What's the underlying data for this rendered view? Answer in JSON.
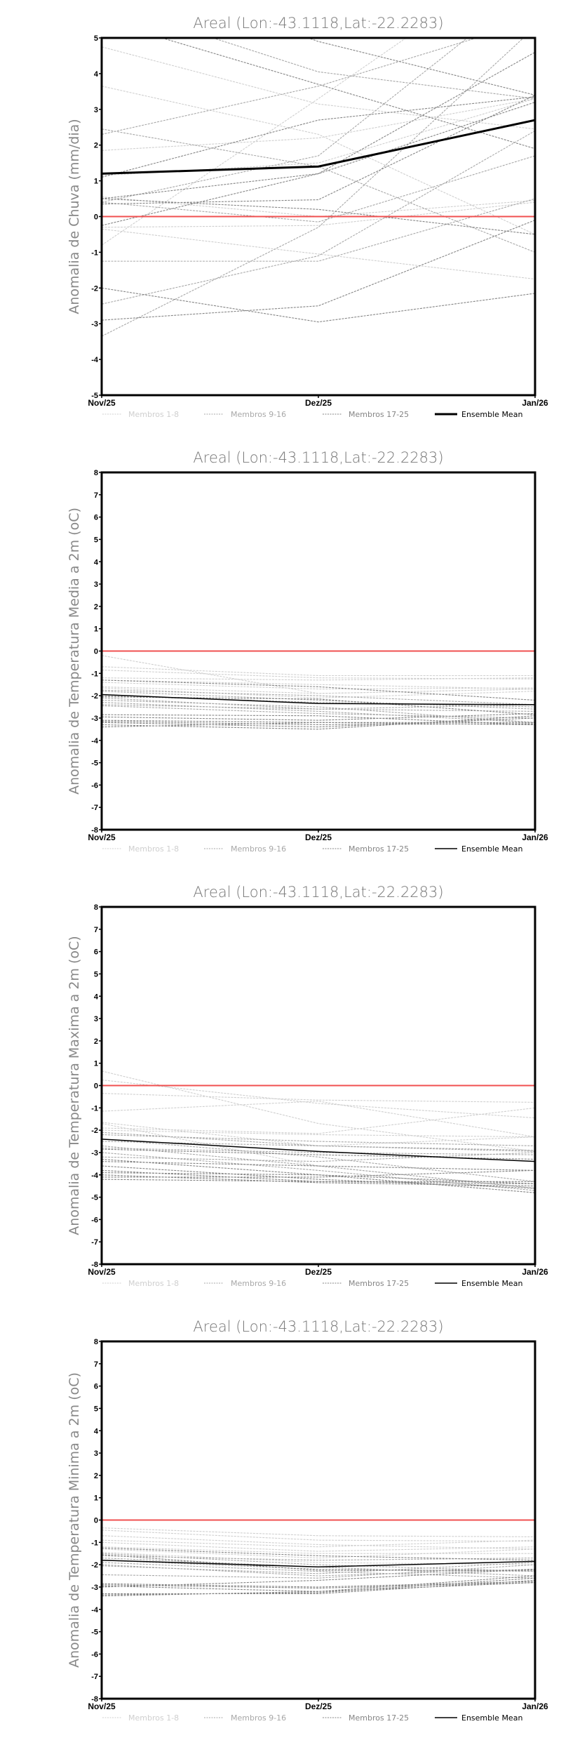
{
  "colors": {
    "g1": "#cfcfcf",
    "g2": "#a8a8a8",
    "g3": "#858585",
    "mean": "#000000",
    "zero": "#f05050"
  },
  "legend": [
    "Membros 1-8",
    "Membros 9-16",
    "Membros 17-25",
    "Ensemble Mean"
  ],
  "chart_data": [
    {
      "type": "line",
      "title": "Areal (Lon:-43.1118,Lat:-22.2283)",
      "ylabel": "Anomalia de Chuva (mm/dia)",
      "categories": [
        "Nov/25",
        "Dez/25",
        "Jan/26"
      ],
      "ylim": [
        -5,
        5
      ],
      "yticks": [
        5,
        4,
        3,
        2,
        1,
        0,
        -1,
        -2,
        -3,
        -4,
        -5
      ],
      "mean": [
        1.2,
        1.4,
        2.7
      ],
      "members": [
        [
          4.75,
          3.15,
          2.45
        ],
        [
          3.65,
          2.3,
          -0.5
        ],
        [
          1.85,
          2.2,
          3.3
        ],
        [
          -0.8,
          3.3,
          7.5
        ],
        [
          0.55,
          0.0,
          0.45
        ],
        [
          1.15,
          1.5,
          3.3
        ],
        [
          -0.3,
          -0.25,
          0.4
        ],
        [
          -0.35,
          -1.05,
          -1.75
        ],
        [
          2.3,
          3.65,
          5.5
        ],
        [
          2.45,
          1.4,
          -1.0
        ],
        [
          6.0,
          4.05,
          3.3
        ],
        [
          0.4,
          1.7,
          6.5
        ],
        [
          -1.25,
          -1.25,
          0.5
        ],
        [
          -2.45,
          -1.1,
          2.4
        ],
        [
          -3.35,
          -0.3,
          5.3
        ],
        [
          0.4,
          -0.15,
          1.7
        ],
        [
          7.0,
          4.9,
          3.4
        ],
        [
          5.5,
          3.7,
          1.9
        ],
        [
          1.1,
          2.7,
          3.35
        ],
        [
          0.5,
          1.2,
          4.6
        ],
        [
          -0.25,
          1.2,
          3.2
        ],
        [
          0.35,
          0.47,
          3.4
        ],
        [
          0.5,
          0.2,
          -0.5
        ],
        [
          -2.0,
          -2.95,
          -2.15
        ],
        [
          -2.9,
          -2.5,
          -0.1
        ]
      ]
    },
    {
      "type": "line",
      "title": "Areal (Lon:-43.1118,Lat:-22.2283)",
      "ylabel": "Anomalia de Temperatura Media a 2m (oC)",
      "categories": [
        "Nov/25",
        "Dez/25",
        "Jan/26"
      ],
      "ylim": [
        -8,
        8
      ],
      "yticks": [
        8,
        7,
        6,
        5,
        4,
        3,
        2,
        1,
        0,
        -1,
        -2,
        -3,
        -4,
        -5,
        -6,
        -7,
        -8
      ],
      "mean": [
        -1.95,
        -2.35,
        -2.4
      ],
      "members": [
        [
          -0.2,
          -1.9,
          -1.7
        ],
        [
          -0.7,
          -1.1,
          -1.1
        ],
        [
          -0.85,
          -1.2,
          -1.25
        ],
        [
          -1.2,
          -1.3,
          -1.2
        ],
        [
          -1.3,
          -1.5,
          -1.7
        ],
        [
          -1.4,
          -1.7,
          -1.65
        ],
        [
          -1.6,
          -1.9,
          -1.7
        ],
        [
          -1.65,
          -2.1,
          -1.8
        ],
        [
          -1.75,
          -2.0,
          -2.4
        ],
        [
          -1.8,
          -2.2,
          -2.6
        ],
        [
          -2.0,
          -2.3,
          -2.5
        ],
        [
          -2.1,
          -2.6,
          -2.7
        ],
        [
          -2.2,
          -2.5,
          -3.2
        ],
        [
          -2.3,
          -2.7,
          -3.2
        ],
        [
          -2.4,
          -2.6,
          -2.4
        ],
        [
          -2.45,
          -2.8,
          -3.0
        ],
        [
          -2.85,
          -2.9,
          -3.3
        ],
        [
          -2.95,
          -3.1,
          -2.8
        ],
        [
          -3.1,
          -3.2,
          -3.2
        ],
        [
          -3.15,
          -3.3,
          -3.25
        ],
        [
          -3.2,
          -3.4,
          -3.0
        ],
        [
          -3.3,
          -3.5,
          -2.9
        ],
        [
          -3.4,
          -3.2,
          -3.3
        ],
        [
          -1.3,
          -1.6,
          -2.2
        ],
        [
          -2.05,
          -2.15,
          -2.85
        ]
      ]
    },
    {
      "type": "line",
      "title": "Areal (Lon:-43.1118,Lat:-22.2283)",
      "ylabel": "Anomalia de Temperatura Maxima a 2m (oC)",
      "categories": [
        "Nov/25",
        "Dez/25",
        "Jan/26"
      ],
      "ylim": [
        -8,
        8
      ],
      "yticks": [
        8,
        7,
        6,
        5,
        4,
        3,
        2,
        1,
        0,
        -1,
        -2,
        -3,
        -4,
        -5,
        -6,
        -7,
        -8
      ],
      "mean": [
        -2.4,
        -2.95,
        -3.4
      ],
      "members": [
        [
          0.65,
          -1.7,
          -2.95
        ],
        [
          0.25,
          -0.8,
          -1.45
        ],
        [
          -0.35,
          -0.65,
          -0.75
        ],
        [
          -1.15,
          -0.7,
          -2.3
        ],
        [
          -1.65,
          -2.7,
          -2.3
        ],
        [
          -1.7,
          -3.6,
          -4.6
        ],
        [
          -1.9,
          -2.15,
          -1.0
        ],
        [
          -2.0,
          -2.2,
          -2.3
        ],
        [
          -2.1,
          -2.7,
          -2.95
        ],
        [
          -2.2,
          -2.5,
          -2.7
        ],
        [
          -2.4,
          -3.2,
          -4.3
        ],
        [
          -2.5,
          -2.7,
          -2.9
        ],
        [
          -2.7,
          -3.6,
          -4.6
        ],
        [
          -2.8,
          -3.0,
          -3.1
        ],
        [
          -3.0,
          -3.8,
          -4.7
        ],
        [
          -3.2,
          -3.4,
          -3.0
        ],
        [
          -3.3,
          -4.0,
          -4.8
        ],
        [
          -3.4,
          -3.6,
          -3.8
        ],
        [
          -3.6,
          -4.2,
          -4.6
        ],
        [
          -3.8,
          -4.3,
          -4.3
        ],
        [
          -3.9,
          -4.0,
          -4.4
        ],
        [
          -4.0,
          -4.35,
          -4.5
        ],
        [
          -4.1,
          -4.1,
          -3.8
        ],
        [
          -4.2,
          -4.3,
          -4.4
        ],
        [
          -2.85,
          -3.1,
          -3.3
        ]
      ]
    },
    {
      "type": "line",
      "title": "Areal (Lon:-43.1118,Lat:-22.2283)",
      "ylabel": "Anomalia de Temperatura Minima a 2m (oC)",
      "categories": [
        "Nov/25",
        "Dez/25",
        "Jan/26"
      ],
      "ylim": [
        -8,
        8
      ],
      "yticks": [
        8,
        7,
        6,
        5,
        4,
        3,
        2,
        1,
        0,
        -1,
        -2,
        -3,
        -4,
        -5,
        -6,
        -7,
        -8
      ],
      "mean": [
        -1.8,
        -2.1,
        -1.85
      ],
      "members": [
        [
          -0.35,
          -0.7,
          -0.75
        ],
        [
          -0.45,
          -0.9,
          -0.95
        ],
        [
          -0.7,
          -1.1,
          -1.3
        ],
        [
          -0.9,
          -1.2,
          -0.9
        ],
        [
          -1.0,
          -1.4,
          -1.2
        ],
        [
          -1.2,
          -1.5,
          -1.5
        ],
        [
          -1.3,
          -1.7,
          -1.3
        ],
        [
          -1.45,
          -1.9,
          -2.0
        ],
        [
          -1.5,
          -2.0,
          -2.3
        ],
        [
          -1.6,
          -1.8,
          -1.7
        ],
        [
          -1.7,
          -2.1,
          -2.5
        ],
        [
          -1.8,
          -2.2,
          -2.3
        ],
        [
          -1.9,
          -2.3,
          -2.6
        ],
        [
          -2.0,
          -2.5,
          -2.2
        ],
        [
          -2.05,
          -2.4,
          -1.9
        ],
        [
          -2.45,
          -2.6,
          -2.0
        ],
        [
          -2.85,
          -3.0,
          -2.75
        ],
        [
          -2.9,
          -3.05,
          -2.8
        ],
        [
          -2.95,
          -3.2,
          -2.5
        ],
        [
          -3.0,
          -2.7,
          -2.2
        ],
        [
          -3.3,
          -3.3,
          -2.7
        ],
        [
          -3.35,
          -3.25,
          -2.6
        ],
        [
          -3.4,
          -3.2,
          -2.8
        ],
        [
          -1.25,
          -1.6,
          -1.8
        ],
        [
          -1.55,
          -2.25,
          -2.25
        ]
      ]
    }
  ]
}
